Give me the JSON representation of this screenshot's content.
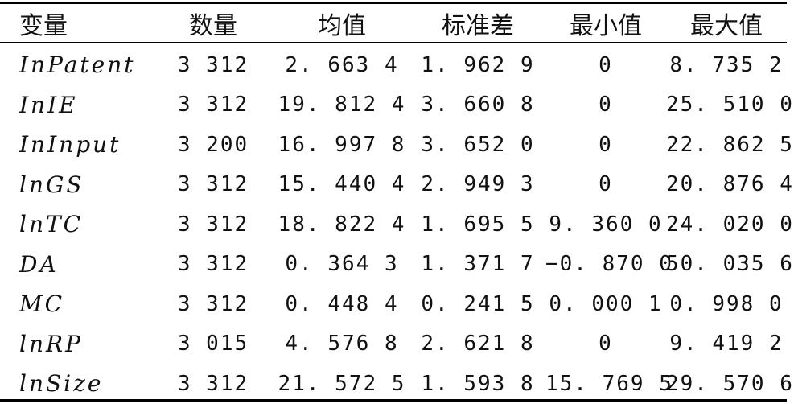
{
  "table": {
    "headers": [
      "变量",
      "数量",
      "均值",
      "标准差",
      "最小值",
      "最大值"
    ],
    "rows": [
      [
        "InPatent",
        "3 312",
        "2. 663 4",
        "1. 962 9",
        "0",
        "8. 735 2"
      ],
      [
        "InIE",
        "3 312",
        "19. 812 4",
        "3. 660 8",
        "0",
        "25. 510 0"
      ],
      [
        "InInput",
        "3 200",
        "16. 997 8",
        "3. 652 0",
        "0",
        "22. 862 5"
      ],
      [
        "lnGS",
        "3 312",
        "15. 440 4",
        "2. 949 3",
        "0",
        "20. 876 4"
      ],
      [
        "lnTC",
        "3 312",
        "18. 822 4",
        "1. 695 5",
        "9. 360 0",
        "24. 020 0"
      ],
      [
        "DA",
        "3 312",
        "0. 364 3",
        "1. 371 7",
        "−0. 870 0",
        "50. 035 6"
      ],
      [
        "MC",
        "3 312",
        "0. 448 4",
        "0. 241 5",
        "0. 000 1",
        "0. 998 0"
      ],
      [
        "lnRP",
        "3 015",
        "4. 576 8",
        "2. 621 8",
        "0",
        "9. 419 2"
      ],
      [
        "lnSize",
        "3 312",
        "21. 572 5",
        "1. 593 8",
        "15. 769 5",
        "29. 570 6"
      ]
    ]
  }
}
